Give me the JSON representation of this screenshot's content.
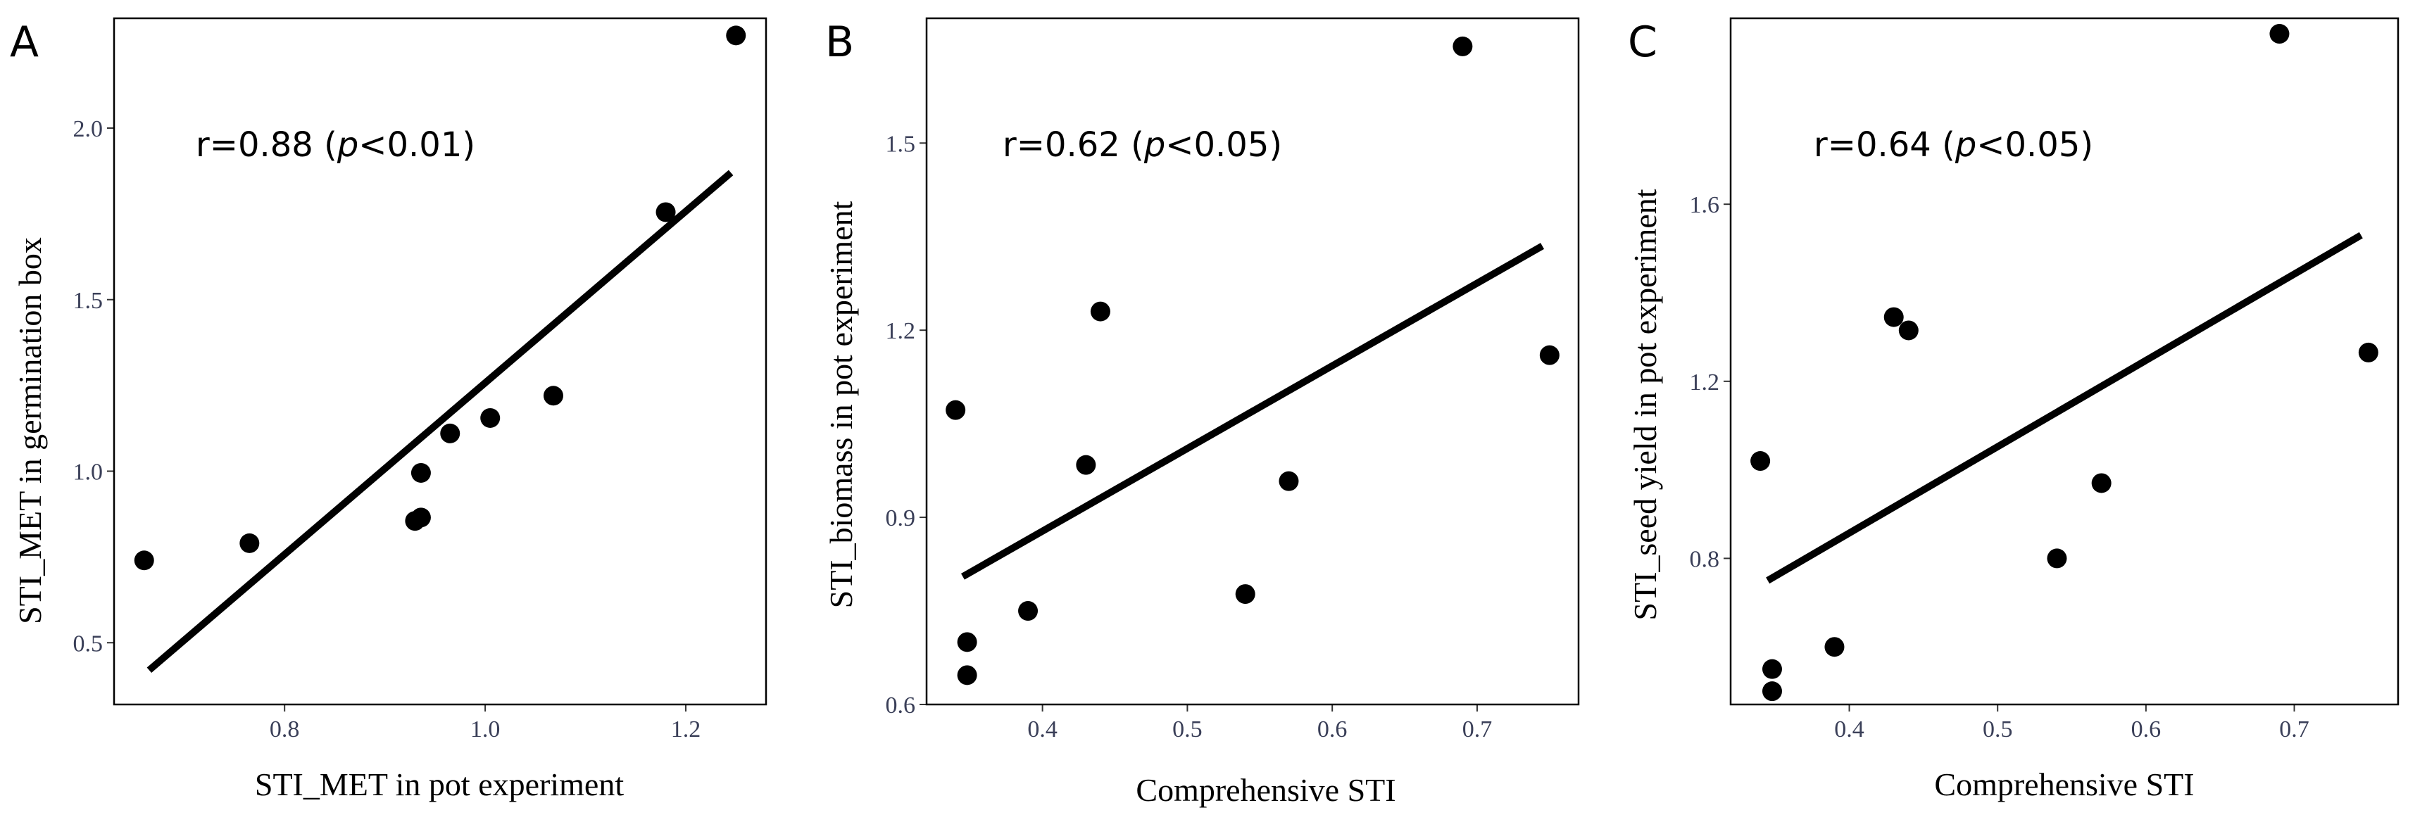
{
  "chart_data": [
    {
      "type": "scatter",
      "panel": "A",
      "annotation": {
        "prefix": "r=0.88 (",
        "italic": "p",
        "suffix": "<0.01)"
      },
      "xlabel": "STI_MET in pot experiment",
      "ylabel": "STI_MET in germination box",
      "xlim": [
        0.63,
        1.28
      ],
      "ylim": [
        0.32,
        2.32
      ],
      "xticks": [
        0.8,
        1.0,
        1.2
      ],
      "xtick_labels": [
        "0.8",
        "1.0",
        "1.2"
      ],
      "yticks": [
        0.5,
        1.0,
        1.5,
        2.0
      ],
      "ytick_labels": [
        "0.5",
        "1.0",
        "1.5",
        "2.0"
      ],
      "points": [
        {
          "x": 0.66,
          "y": 0.74
        },
        {
          "x": 0.765,
          "y": 0.79
        },
        {
          "x": 0.93,
          "y": 0.855
        },
        {
          "x": 0.936,
          "y": 0.865
        },
        {
          "x": 0.936,
          "y": 0.995
        },
        {
          "x": 0.965,
          "y": 1.11
        },
        {
          "x": 1.005,
          "y": 1.155
        },
        {
          "x": 1.068,
          "y": 1.22
        },
        {
          "x": 1.18,
          "y": 1.755
        },
        {
          "x": 1.25,
          "y": 2.27
        }
      ],
      "fit_line": [
        {
          "x": 0.665,
          "y": 0.42
        },
        {
          "x": 1.245,
          "y": 1.87
        }
      ]
    },
    {
      "type": "scatter",
      "panel": "B",
      "annotation": {
        "prefix": "r=0.62 (",
        "italic": "p",
        "suffix": "<0.05)"
      },
      "xlabel": "Comprehensive STI",
      "ylabel": "STI_biomass in pot experiment",
      "xlim": [
        0.32,
        0.77
      ],
      "ylim": [
        0.6,
        1.7
      ],
      "xticks": [
        0.4,
        0.5,
        0.6,
        0.7
      ],
      "xtick_labels": [
        "0.4",
        "0.5",
        "0.6",
        "0.7"
      ],
      "yticks": [
        0.6,
        0.9,
        1.2,
        1.5
      ],
      "ytick_labels": [
        "0.6",
        "0.9",
        "1.2",
        "1.5"
      ],
      "points": [
        {
          "x": 0.34,
          "y": 1.072
        },
        {
          "x": 0.348,
          "y": 0.7
        },
        {
          "x": 0.348,
          "y": 0.647
        },
        {
          "x": 0.39,
          "y": 0.75
        },
        {
          "x": 0.43,
          "y": 0.984
        },
        {
          "x": 0.44,
          "y": 1.23
        },
        {
          "x": 0.54,
          "y": 0.777
        },
        {
          "x": 0.57,
          "y": 0.958
        },
        {
          "x": 0.69,
          "y": 1.655
        },
        {
          "x": 0.75,
          "y": 1.16
        }
      ],
      "fit_line": [
        {
          "x": 0.345,
          "y": 0.805
        },
        {
          "x": 0.745,
          "y": 1.335
        }
      ]
    },
    {
      "type": "scatter",
      "panel": "C",
      "annotation": {
        "prefix": "r=0.64 (",
        "italic": "p",
        "suffix": "<0.05)"
      },
      "xlabel": "Comprehensive STI",
      "ylabel": "STI_seed yield in pot experiment",
      "xlim": [
        0.32,
        0.77
      ],
      "ylim": [
        0.47,
        2.02
      ],
      "xticks": [
        0.4,
        0.5,
        0.6,
        0.7
      ],
      "xtick_labels": [
        "0.4",
        "0.5",
        "0.6",
        "0.7"
      ],
      "yticks": [
        0.8,
        1.2,
        1.6
      ],
      "ytick_labels": [
        "0.8",
        "1.2",
        "1.6"
      ],
      "points": [
        {
          "x": 0.34,
          "y": 1.02
        },
        {
          "x": 0.348,
          "y": 0.55
        },
        {
          "x": 0.348,
          "y": 0.5
        },
        {
          "x": 0.39,
          "y": 0.6
        },
        {
          "x": 0.43,
          "y": 1.345
        },
        {
          "x": 0.44,
          "y": 1.315
        },
        {
          "x": 0.54,
          "y": 0.8
        },
        {
          "x": 0.57,
          "y": 0.97
        },
        {
          "x": 0.69,
          "y": 1.985
        },
        {
          "x": 0.75,
          "y": 1.265
        }
      ],
      "fit_line": [
        {
          "x": 0.345,
          "y": 0.75
        },
        {
          "x": 0.745,
          "y": 1.53
        }
      ]
    }
  ]
}
